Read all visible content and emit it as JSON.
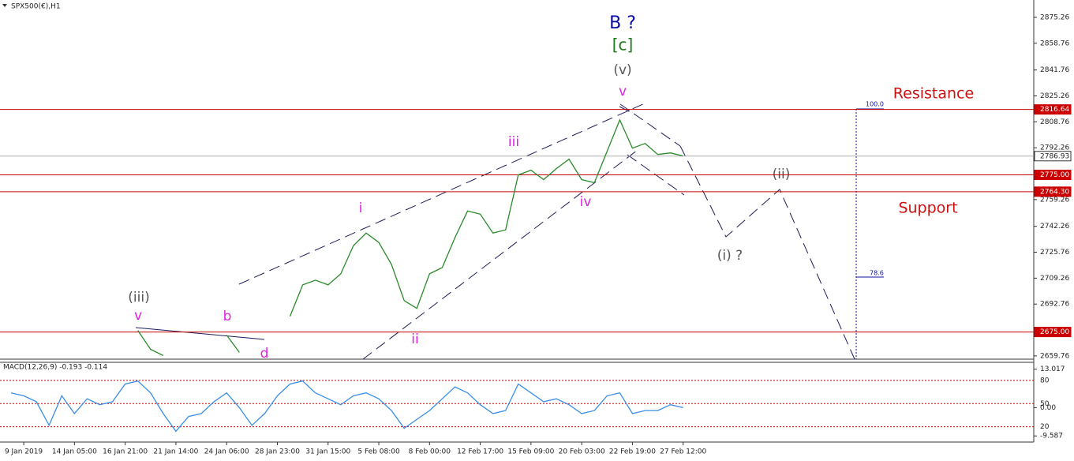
{
  "chart_data": [
    {
      "type": "line",
      "title": "SPX500(€),H1",
      "color": "#2a8a2a",
      "categories": [
        null,
        "9 Jan 2019",
        null,
        null,
        null,
        "14 Jan 05:00",
        null,
        null,
        null,
        "16 Jan 21:00",
        null,
        null,
        null,
        "21 Jan 14:00",
        null,
        null,
        null,
        "24 Jan 06:00",
        null,
        null,
        null,
        "28 Jan 23:00",
        null,
        null,
        null,
        "31 Jan 15:00",
        null,
        null,
        null,
        "5 Feb 08:00",
        null,
        null,
        null,
        "8 Feb 00:00",
        null,
        null,
        null,
        "12 Feb 17:00",
        null,
        null,
        null,
        "15 Feb 09:00",
        null,
        null,
        null,
        "20 Feb 03:00",
        null,
        null,
        null,
        "22 Feb 19:00",
        null,
        null,
        null,
        "27 Feb 12:00"
      ],
      "values": [
        null,
        null,
        null,
        null,
        null,
        null,
        null,
        null,
        null,
        null,
        2676,
        2664,
        2660,
        null,
        null,
        null,
        null,
        2673,
        2662,
        null,
        null,
        null,
        2685,
        2705,
        2708,
        2705,
        2712,
        2730,
        2738,
        2732,
        2718,
        2695,
        2690,
        2712,
        2716,
        2735,
        2752,
        2750,
        2738,
        2740,
        2775,
        2778,
        2772,
        2779,
        2785,
        2772,
        2770,
        2790,
        2810,
        2792,
        2795,
        2788,
        2789,
        2787
      ],
      "ylim": [
        2657.7,
        2886.3
      ],
      "yticks": [
        2875.26,
        2858.76,
        2841.76,
        2825.26,
        2808.76,
        2792.26,
        2759.26,
        2742.26,
        2725.76,
        2709.26,
        2692.76,
        2659.76
      ],
      "levels": [
        {
          "value": 2816.64,
          "color": "#cc0000"
        },
        {
          "value": 2786.93,
          "color": "#b0b0b0"
        },
        {
          "value": 2775,
          "label": "2775.00",
          "color": "#cc0000"
        },
        {
          "value": 2764.3,
          "label": "2764.30",
          "color": "#cc0000"
        },
        {
          "value": 2675,
          "label": "2675.00",
          "color": "#cc0000"
        }
      ],
      "annotations": [
        "B ?",
        "[c]",
        "(v)",
        "v",
        "iii",
        "i",
        "ii",
        "iv",
        "(iii)",
        "v",
        "b",
        "d",
        "(ii)",
        "(i) ?",
        "Resistance",
        "Support",
        "100.0",
        "78.6"
      ]
    },
    {
      "type": "line",
      "title": "MACD(12,26,9) -0.193 -0.114",
      "color": "#3a8ee6",
      "values": [
        5,
        4,
        2,
        -6,
        4,
        -2,
        3,
        1,
        2,
        8,
        9,
        5,
        -2,
        -8,
        -3,
        -2,
        2,
        5,
        0,
        -6,
        -2,
        4,
        8,
        9,
        5,
        3,
        1,
        4,
        5,
        3,
        -1,
        -7,
        -4,
        -1,
        3,
        7,
        5,
        1,
        -2,
        -1,
        8,
        5,
        2,
        3,
        1,
        -2,
        -1,
        4,
        5,
        -2,
        -1,
        -1,
        1,
        0
      ],
      "ylim": [
        -11.66,
        15.35
      ],
      "yticks": [
        13.017,
        {
          "value": 0,
          "label": "0.00"
        },
        -9.587
      ],
      "y2lim": [
        0.3,
        103.3
      ],
      "y2ticks": [
        80,
        50,
        20
      ]
    }
  ]
}
